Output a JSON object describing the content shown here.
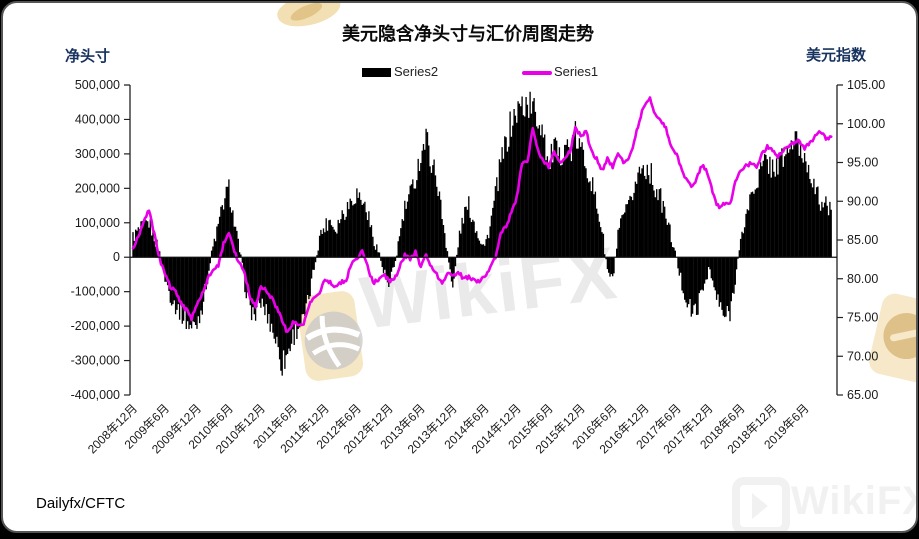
{
  "watermark": {
    "brand": "WikiFX"
  },
  "footer": {
    "source": "Dailyfx/CFTC"
  },
  "chart_data": {
    "type": "combo",
    "title": "美元隐含净头寸与汇价周图走势",
    "left_axis": {
      "label": "净头寸",
      "min": -400000,
      "max": 500000,
      "ticks": [
        "500,000",
        "400,000",
        "300,000",
        "200,000",
        "100,000",
        "0",
        "-100,000",
        "-200,000",
        "-300,000",
        "-400,000"
      ]
    },
    "right_axis": {
      "label": "美元指数",
      "min": 65,
      "max": 105,
      "ticks": [
        "105.00",
        "100.00",
        "95.00",
        "90.00",
        "85.00",
        "80.00",
        "75.00",
        "70.00",
        "65.00"
      ]
    },
    "x_labels": [
      "2008年12月",
      "2009年6月",
      "2009年12月",
      "2010年6月",
      "2010年12月",
      "2011年6月",
      "2011年12月",
      "2012年6月",
      "2012年12月",
      "2013年6月",
      "2013年12月",
      "2014年6月",
      "2014年12月",
      "2015年6月",
      "2015年12月",
      "2016年6月",
      "2016年12月",
      "2017年6月",
      "2017年12月",
      "2018年6月",
      "2018年12月",
      "2019年6月"
    ],
    "x_start": "2008-12",
    "x_interval": "monthly",
    "legend_position": "top-center",
    "grid": false,
    "series": [
      {
        "name": "Series2",
        "type": "bar",
        "axis": "left",
        "color": "#000000",
        "values_unit": "thousand contracts (net position)",
        "values": [
          60,
          75,
          90,
          100,
          60,
          10,
          -60,
          -110,
          -140,
          -160,
          -185,
          -205,
          -190,
          -140,
          -60,
          30,
          90,
          160,
          200,
          100,
          20,
          -80,
          -150,
          -170,
          -130,
          -160,
          -200,
          -250,
          -310,
          -280,
          -230,
          -200,
          -185,
          -120,
          -30,
          60,
          90,
          110,
          80,
          120,
          140,
          170,
          185,
          165,
          130,
          60,
          20,
          -40,
          -90,
          -30,
          60,
          140,
          180,
          230,
          300,
          345,
          280,
          230,
          120,
          20,
          -100,
          40,
          120,
          150,
          100,
          60,
          30,
          90,
          180,
          270,
          330,
          390,
          420,
          440,
          450,
          430,
          400,
          380,
          260,
          320,
          280,
          340,
          300,
          350,
          310,
          280,
          220,
          150,
          80,
          -40,
          -70,
          60,
          120,
          140,
          200,
          250,
          265,
          250,
          200,
          170,
          120,
          60,
          -10,
          -80,
          -130,
          -165,
          -140,
          -90,
          -30,
          -90,
          -140,
          -175,
          -160,
          -60,
          40,
          120,
          180,
          220,
          260,
          280,
          260,
          270,
          290,
          310,
          340,
          320,
          290,
          260,
          190,
          160,
          150,
          130
        ]
      },
      {
        "name": "Series1",
        "type": "line",
        "axis": "right",
        "color": "#E800E8",
        "values_unit": "USD index",
        "values": [
          84.0,
          85.5,
          87.5,
          88.8,
          85.8,
          82.5,
          80.5,
          79.0,
          78.3,
          76.8,
          76.0,
          74.9,
          76.5,
          78.0,
          80.0,
          81.0,
          81.8,
          84.5,
          86.0,
          83.5,
          82.0,
          80.5,
          77.5,
          76.3,
          79.0,
          78.5,
          77.5,
          76.2,
          74.5,
          73.0,
          74.5,
          74.2,
          74.0,
          76.5,
          77.5,
          78.0,
          80.0,
          79.5,
          78.8,
          79.5,
          79.8,
          82.0,
          82.5,
          83.5,
          81.5,
          79.5,
          79.8,
          80.5,
          79.8,
          79.8,
          81.5,
          83.0,
          82.5,
          83.5,
          81.5,
          83.0,
          81.5,
          80.5,
          79.5,
          80.8,
          80.3,
          81.0,
          80.0,
          80.2,
          79.8,
          79.5,
          80.3,
          81.5,
          82.8,
          86.0,
          86.8,
          88.5,
          90.5,
          95.0,
          95.0,
          99.5,
          96.5,
          95.0,
          94.5,
          96.5,
          95.0,
          95.5,
          96.5,
          99.5,
          98.5,
          99.0,
          96.5,
          95.5,
          94.0,
          95.5,
          94.5,
          96.0,
          95.0,
          95.5,
          97.5,
          100.5,
          102.5,
          103.2,
          101.0,
          100.5,
          99.5,
          97.0,
          96.0,
          94.0,
          92.5,
          91.8,
          93.5,
          94.8,
          93.0,
          90.5,
          89.0,
          89.8,
          89.5,
          92.5,
          94.0,
          94.5,
          95.0,
          94.5,
          96.0,
          97.0,
          96.5,
          95.8,
          96.5,
          97.0,
          97.5,
          97.8,
          96.8,
          97.5,
          98.5,
          99.1,
          98.0,
          98.3
        ]
      }
    ]
  }
}
